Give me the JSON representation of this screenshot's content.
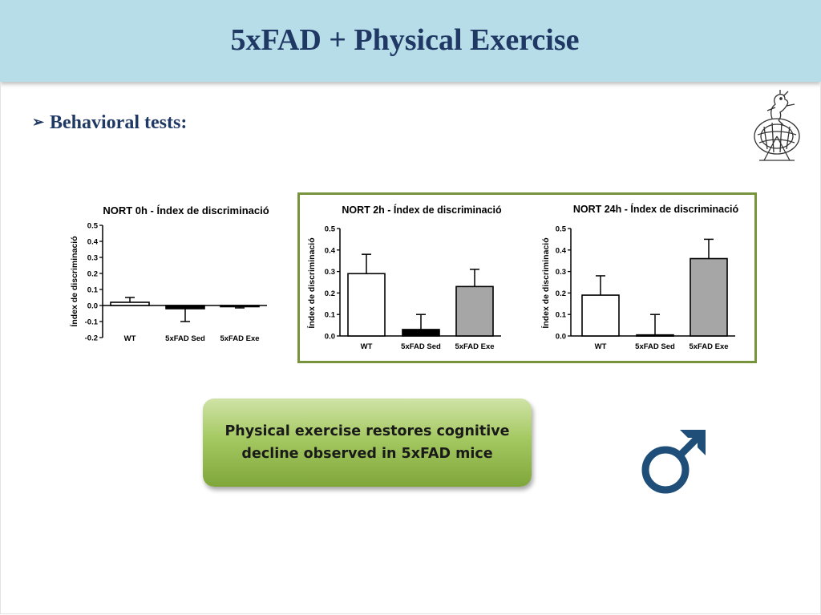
{
  "title": "5xFAD + Physical Exercise",
  "bullet": {
    "marker": "➢",
    "text": "Behavioral tests:"
  },
  "callout": {
    "text": "Physical exercise restores cognitive decline observed in 5xFAD mice"
  },
  "icons": {
    "mascot": "mouse-running-wheel-icon",
    "male": "male-symbol-icon"
  },
  "colors": {
    "header": "#b7dde8",
    "title": "#1f3864",
    "frame": "#77933c",
    "callout": "#9bbb59",
    "male": "#1f4e79"
  },
  "chart_data": [
    {
      "type": "bar",
      "title": "NORT 0h - Índex de discriminació",
      "ylabel": "Índex de discriminació",
      "categories": [
        "WT",
        "5xFAD Sed",
        "5xFAD Exe"
      ],
      "values": [
        0.02,
        -0.02,
        -0.005
      ],
      "errors": [
        0.03,
        0.08,
        0.01
      ],
      "fills": [
        "#ffffff",
        "#000000",
        "#a6a6a6"
      ],
      "yticks": [
        "0.5",
        "0.4",
        "0.3",
        "0.2",
        "0.1",
        "0.0",
        "-0.1",
        "-0.2"
      ],
      "ylim": [
        -0.2,
        0.5
      ]
    },
    {
      "type": "bar",
      "title": "NORT 2h - Índex de discriminació",
      "ylabel": "Índex de discriminació",
      "categories": [
        "WT",
        "5xFAD Sed",
        "5xFAD Exe"
      ],
      "values": [
        0.29,
        0.03,
        0.23
      ],
      "errors": [
        0.09,
        0.07,
        0.08
      ],
      "fills": [
        "#ffffff",
        "#000000",
        "#a6a6a6"
      ],
      "yticks": [
        "0.5",
        "0.4",
        "0.3",
        "0.2",
        "0.1",
        "0.0"
      ],
      "ylim": [
        0,
        0.5
      ]
    },
    {
      "type": "bar",
      "title": "NORT 24h - Índex de discriminació",
      "ylabel": "Índex de discriminació",
      "categories": [
        "WT",
        "5xFAD Sed",
        "5xFAD Exe"
      ],
      "values": [
        0.19,
        0.005,
        0.36
      ],
      "errors": [
        0.09,
        0.095,
        0.09
      ],
      "fills": [
        "#ffffff",
        "#000000",
        "#a6a6a6"
      ],
      "yticks": [
        "0.5",
        "0.4",
        "0.3",
        "0.2",
        "0.1",
        "0.0"
      ],
      "ylim": [
        0,
        0.5
      ]
    }
  ]
}
